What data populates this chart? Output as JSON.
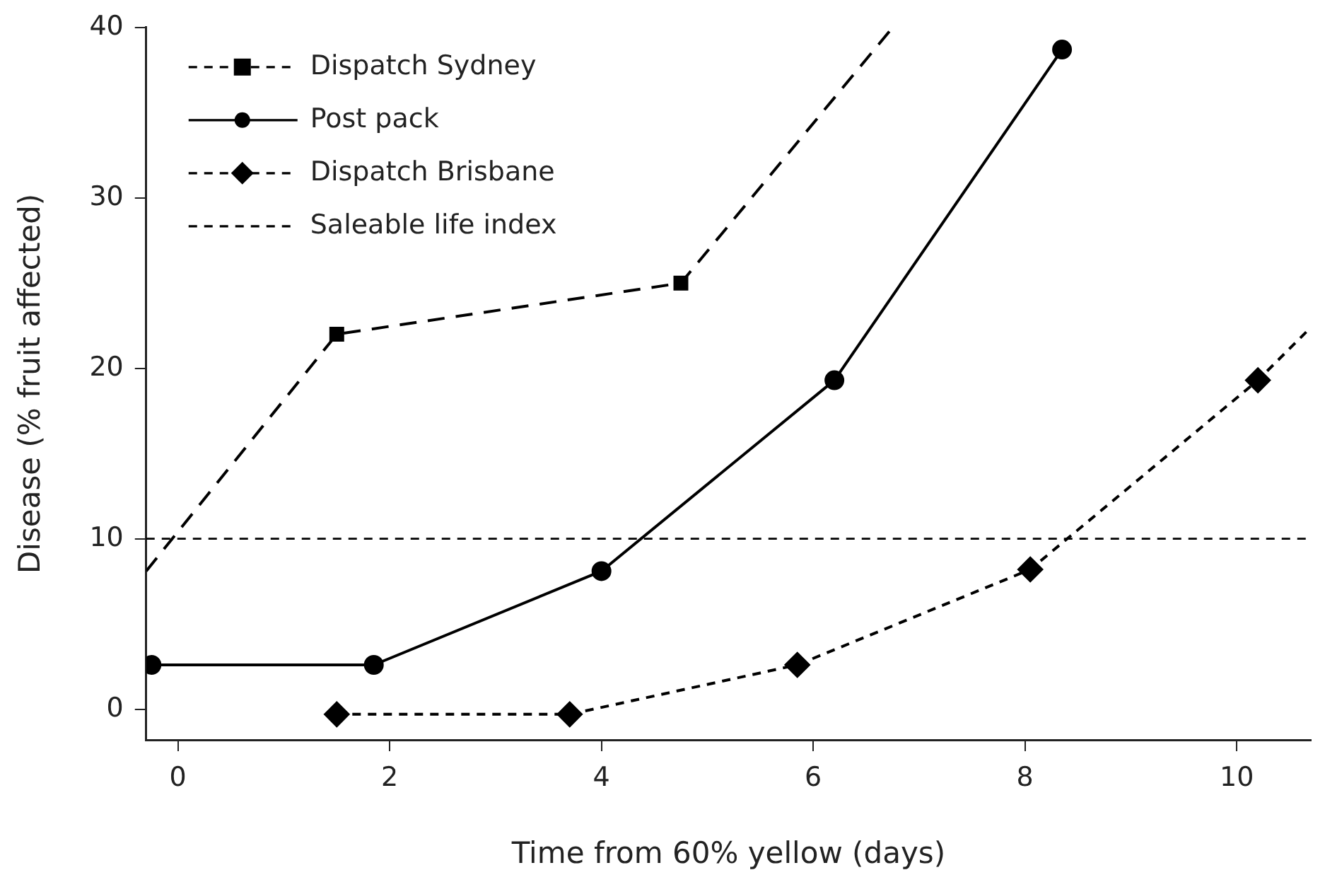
{
  "chart_data": {
    "type": "line",
    "xlabel": "Time from 60% yellow (days)",
    "ylabel": "Disease (% fruit affected)",
    "xlim": [
      -0.3,
      10.7
    ],
    "xticks": [
      0,
      2,
      4,
      6,
      8,
      10
    ],
    "ylim": [
      -1.8,
      40
    ],
    "yticks": [
      0,
      10,
      20,
      30,
      40
    ],
    "grid": false,
    "legend": "top left",
    "series": [
      {
        "name": "Dispatch Sydney",
        "color": "#000000",
        "marker": "square",
        "line_style": "dashed",
        "x": [
          -0.3,
          1.5,
          4.75,
          6.75
        ],
        "values": [
          8.1,
          22,
          25,
          40
        ]
      },
      {
        "name": "Post pack",
        "color": "#000000",
        "marker": "circle",
        "line_style": "solid",
        "x": [
          -0.25,
          1.85,
          4,
          6.2,
          8.35
        ],
        "values": [
          2.6,
          2.6,
          8.1,
          19.3,
          38.7
        ]
      },
      {
        "name": "Dispatch Brisbane",
        "color": "#000000",
        "marker": "diamond",
        "line_style": "dashed",
        "x": [
          1.5,
          3.7,
          5.85,
          8.05,
          10.2,
          10.7
        ],
        "values": [
          -0.3,
          -0.3,
          2.6,
          8.2,
          19.3,
          22.4
        ]
      }
    ],
    "ref_lines": [
      {
        "axis": "y",
        "value": 10,
        "label": "Saleable life index",
        "color": "#000000",
        "line_style": "dashed"
      }
    ]
  }
}
